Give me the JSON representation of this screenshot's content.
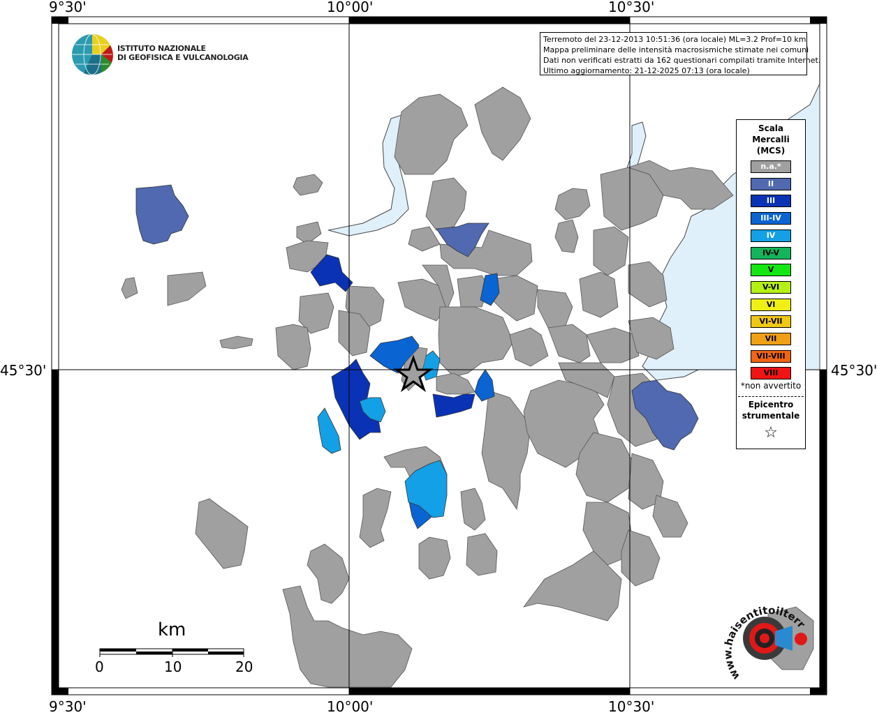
{
  "coords": {
    "lon_left": "9°30'",
    "lon_mid": "10°00'",
    "lon_right": "10°30'",
    "lat_mid": "45°30'"
  },
  "logo": {
    "line1": "ISTITUTO NAZIONALE",
    "line2": "DI GEOFISICA E VULCANOLOGIA"
  },
  "info": {
    "line1": "Terremoto del 23-12-2013 10:51:36 (ora locale) ML=3.2 Prof=10 km",
    "line2": "Mappa preliminare delle intensità macrosismiche stimate nei comuni",
    "line3": "Dati non verificati estratti da 162 questionari compilati tramite Internet.",
    "line4": "Ultimo aggiornamento: 21-12-2025 07:13 (ora locale)"
  },
  "legend": {
    "title1": "Scala",
    "title2": "Mercalli",
    "title3": "(MCS)",
    "items": [
      {
        "label": "n.a.*",
        "color": "#a0a0a0",
        "text_color": "#ffffff"
      },
      {
        "label": "II",
        "color": "#5069b0",
        "text_color": "#ffffff"
      },
      {
        "label": "III",
        "color": "#0a32b4",
        "text_color": "#ffffff"
      },
      {
        "label": "III-IV",
        "color": "#0a64d2",
        "text_color": "#ffffff"
      },
      {
        "label": "IV",
        "color": "#14a0e6",
        "text_color": "#ffffff"
      },
      {
        "label": "IV-V",
        "color": "#14b45a",
        "text_color": "#000000"
      },
      {
        "label": "V",
        "color": "#14e614",
        "text_color": "#000000"
      },
      {
        "label": "V-VI",
        "color": "#b4f014",
        "text_color": "#000000"
      },
      {
        "label": "VI",
        "color": "#f0f014",
        "text_color": "#000000"
      },
      {
        "label": "VI-VII",
        "color": "#f0c814",
        "text_color": "#000000"
      },
      {
        "label": "VII",
        "color": "#f0a014",
        "text_color": "#000000"
      },
      {
        "label": "VII-VIII",
        "color": "#f06414",
        "text_color": "#000000"
      },
      {
        "label": "VIII",
        "color": "#f01414",
        "text_color": "#000000"
      }
    ],
    "note": "*non avvertito",
    "epi1": "Epicentro",
    "epi2": "strumentale",
    "star": "☆"
  },
  "scale_bar": {
    "unit": "km",
    "labels": [
      "0",
      "10",
      "20"
    ]
  },
  "footer_logo": {
    "text": "www.haisentitoilterremoto.it"
  },
  "colors": {
    "na": "#a0a0a0",
    "ii": "#5069b0",
    "iii": "#0a32b4",
    "iii_iv": "#0a64d2",
    "iv": "#14a0e6",
    "water": "#e0f0fa"
  }
}
